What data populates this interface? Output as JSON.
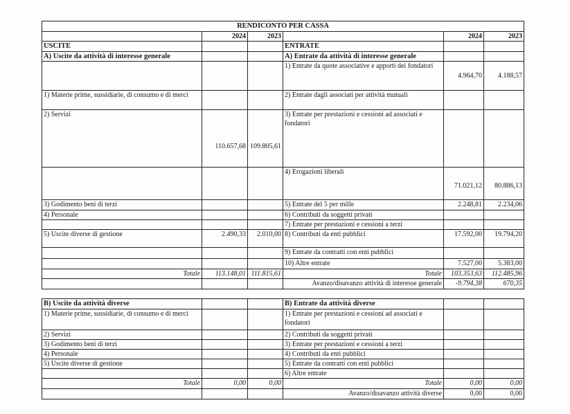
{
  "title": "RENDICONTO PER CASSA",
  "years": [
    "2024",
    "2023"
  ],
  "section_a": {
    "rows": [
      {
        "left": "USCITE",
        "l2024": "",
        "l2023": "",
        "right": "ENTRATE",
        "r2024": "",
        "r2023": "",
        "style": "bold"
      },
      {
        "left": "A) Uscite da attività di interesse generale",
        "l2024": "",
        "l2023": "",
        "right": "A) Entrate da attività di interesse generale",
        "r2024": "",
        "r2023": "",
        "style": "bold"
      },
      {
        "left": "",
        "l2024": "",
        "l2023": "",
        "right": "1) Entrate da quote associative e apporti dei fondatori",
        "r2024": "4.964,70",
        "r2023": "4.188,57"
      },
      {
        "left": "1) Materie prime, sussidiarie, di consumo e di merci",
        "l2024": "",
        "l2023": "",
        "right": "2) Entrate dagli associati per attività mutuali",
        "r2024": "",
        "r2023": ""
      },
      {
        "left": "2) Servizi",
        "l2024": "110.657,68",
        "l2023": "109.805,61",
        "right": "3) Entrate per prestazioni e cessioni ad associati e fondatori",
        "r2024": "",
        "r2023": ""
      },
      {
        "left": "",
        "l2024": "",
        "l2023": "",
        "right": "4) Erogazioni liberali",
        "r2024": "71.021,12",
        "r2023": "80.886,13"
      },
      {
        "left": "3) Godimento beni di terzi",
        "l2024": "",
        "l2023": "",
        "right": "5) Entrate del 5 per mille",
        "r2024": "2.248,81",
        "r2023": "2.234,06"
      },
      {
        "left": "4) Personale",
        "l2024": "",
        "l2023": "",
        "right": "6) Contributi da soggetti privati",
        "r2024": "",
        "r2023": ""
      },
      {
        "left": "",
        "l2024": "",
        "l2023": "",
        "right": "7) Entrate per prestazioni e cessioni a terzi",
        "r2024": "",
        "r2023": ""
      },
      {
        "left": "5) Uscite diverse di gestione",
        "l2024": "2.490,33",
        "l2023": "2.010,00",
        "right": "8) Contributi da enti pubblici",
        "r2024": "17.592,00",
        "r2023": "19.794,20"
      },
      {
        "left": "",
        "l2024": "",
        "l2023": "",
        "right": "9) Entrate da contratti con enti pubblici",
        "r2024": "",
        "r2023": ""
      },
      {
        "left": "",
        "l2024": "",
        "l2023": "",
        "right": "10) Altre entrate",
        "r2024": "7.527,00",
        "r2023": "5.383,00"
      },
      {
        "left": "Totale",
        "l2024": "113.148,01",
        "l2023": "111.815,61",
        "right": "Totale",
        "r2024": "103.353,63",
        "r2023": "112.485,96",
        "style": "total"
      },
      {
        "left": "",
        "l2024": "",
        "l2023": "",
        "right": "Avanzo/disavanzo attività di interesse generale",
        "r2024": "-9.794,38",
        "r2023": "670,35",
        "style": "avanzo-italnum"
      }
    ]
  },
  "section_b": {
    "rows": [
      {
        "left": "B) Uscite da attività diverse",
        "l2024": "",
        "l2023": "",
        "right": "B) Entrate da attività diverse",
        "r2024": "",
        "r2023": "",
        "style": "bold"
      },
      {
        "left": "1) Materie prime, sussidiarie, di consumo e di merci",
        "l2024": "",
        "l2023": "",
        "right": "1) Entrate per prestazioni e cessioni ad associati e fondatori",
        "r2024": "",
        "r2023": ""
      },
      {
        "left": "2) Servizi",
        "l2024": "",
        "l2023": "",
        "right": "2) Contributi da soggetti privati",
        "r2024": "",
        "r2023": ""
      },
      {
        "left": "3) Godimento beni di terzi",
        "l2024": "",
        "l2023": "",
        "right": "3) Entrate per prestazioni e cessioni a terzi",
        "r2024": "",
        "r2023": ""
      },
      {
        "left": "4) Personale",
        "l2024": "",
        "l2023": "",
        "right": "4) Contributi da enti pubblici",
        "r2024": "",
        "r2023": ""
      },
      {
        "left": "5) Uscite diverse di gestione",
        "l2024": "",
        "l2023": "",
        "right": "5) Entrate da contratti con enti pubblici",
        "r2024": "",
        "r2023": ""
      },
      {
        "left": "",
        "l2024": "",
        "l2023": "",
        "right": "6) Altre entrate",
        "r2024": "",
        "r2023": ""
      },
      {
        "left": "Totale",
        "l2024": "0,00",
        "l2023": "0,00",
        "right": "Totale",
        "r2024": "0,00",
        "r2023": "0,00",
        "style": "total"
      },
      {
        "left": "",
        "l2024": "",
        "l2023": "",
        "right": "Avanzo/disavanzo attività diverse",
        "r2024": "0,00",
        "r2023": "0,00",
        "style": "avanzo"
      }
    ]
  }
}
